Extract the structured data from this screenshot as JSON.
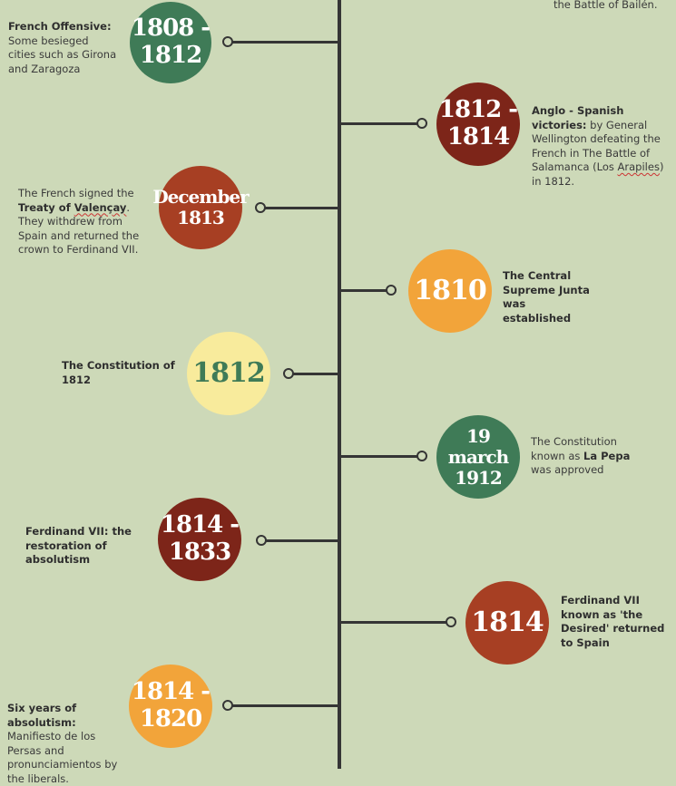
{
  "colors": {
    "background": "#cdd9b8",
    "axis": "#353535",
    "green": "#3f7b57",
    "dark_red": "#7d2519",
    "rust": "#a73f23",
    "orange": "#f2a43a",
    "pale_yellow": "#f8eb9c"
  },
  "events": [
    {
      "id": "e0",
      "date": "",
      "text_bold": "",
      "text": "the Battle of Bailén."
    },
    {
      "id": "e1",
      "date": "1808 -\n1812",
      "text_bold": "French Offensive:",
      "text": "Some besieged cities such as Girona and Zaragoza"
    },
    {
      "id": "e2",
      "date": "1812 -\n1814",
      "text_bold": "Anglo - Spanish victories:",
      "text_pre": "by General Wellington defeating the French in The Battle of Salamanca (Los ",
      "text_u": "Arapiles",
      "text_post": ") in 1812."
    },
    {
      "id": "e3",
      "date": "December\n1813",
      "text_pre": "The French signed the ",
      "text_bold": "Treaty of ",
      "text_u": "Valençay",
      "text_post": ". They withdrew from Spain and returned the crown to Ferdinand VII."
    },
    {
      "id": "e4",
      "date": "1810",
      "text_bold": "The Central Supreme Junta was established"
    },
    {
      "id": "e5",
      "date": "1812",
      "text_bold": "The Constitution of 1812"
    },
    {
      "id": "e6",
      "date": "19 march\n1912",
      "text_pre": "The Constitution known as ",
      "text_bold": "La Pepa",
      "text_post": " was approved"
    },
    {
      "id": "e7",
      "date": "1814 -\n1833",
      "text_bold": "Ferdinand VII: the restoration of absolutism"
    },
    {
      "id": "e8",
      "date": "1814",
      "text_bold": "Ferdinand VII known as 'the Desired' returned to Spain"
    },
    {
      "id": "e9",
      "date": "1814 -\n1820",
      "text_bold": "Six years of absolutism:",
      "text": "Manifiesto de los Persas and pronunciamientos by the liberals."
    }
  ]
}
